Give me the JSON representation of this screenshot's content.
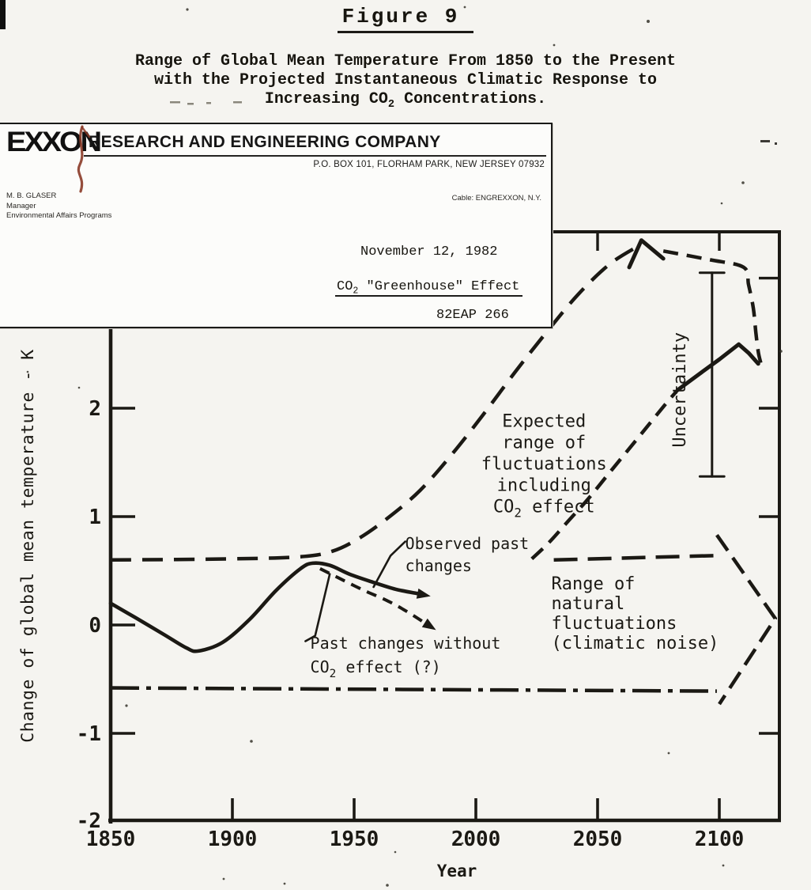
{
  "figure": {
    "label": "Figure 9",
    "caption_line1": "Range of Global Mean Temperature From 1850 to the Present",
    "caption_line2": "with the Projected Instantaneous Climatic Response to",
    "caption_line3_segs": [
      {
        "t": "Increasing CO"
      },
      {
        "t": "2",
        "sub": true
      },
      {
        "t": " Concentrations."
      }
    ]
  },
  "letterhead": {
    "logo": "EXXON",
    "company": "RESEARCH AND ENGINEERING COMPANY",
    "address": "P.O. BOX 101, FLORHAM PARK, NEW JERSEY 07932",
    "sender_name": "M. B. GLASER",
    "sender_title": "Manager",
    "sender_dept": "Environmental Affairs Programs",
    "cable": "Cable: ENGREXXON, N.Y.",
    "date": "November 12, 1982",
    "subject_segs": [
      {
        "t": "CO"
      },
      {
        "t": "2",
        "sub": true
      },
      {
        "t": " \"Greenhouse\" Effect"
      }
    ],
    "doc_number": "82EAP 266"
  },
  "colors": {
    "ink": "#1b1914",
    "paper": "#f5f4f0",
    "letterhead_paper": "#fcfcfa",
    "pen_mark": "#8a3a27"
  },
  "chart_data": {
    "type": "line",
    "title": "Range of Global Mean Temperature From 1850 to the Present with the Projected Instantaneous Climatic Response to Increasing CO2 Concentrations",
    "xlabel": "Year",
    "ylabel": "Change of global mean temperature - K",
    "xlim": [
      1850,
      2125
    ],
    "ylim": [
      -2,
      3.7
    ],
    "x_ticks": [
      1850,
      1900,
      1950,
      2000,
      2050,
      2100
    ],
    "y_ticks": [
      2,
      1,
      0,
      -1,
      -2
    ],
    "right_axis_ticks_K": [
      3.2,
      2,
      1,
      -1
    ],
    "top_axis_ticks_year": [
      2050,
      2100
    ],
    "grid": false,
    "legend": "annotated in-plot",
    "series": [
      {
        "id": "observed-past-changes",
        "name": "Observed past changes",
        "line": "solid",
        "style": {
          "width": 4.6,
          "smooth": true,
          "arrow": true
        },
        "points": [
          [
            1850,
            0.2
          ],
          [
            1860,
            0.07
          ],
          [
            1872,
            -0.09
          ],
          [
            1881,
            -0.21
          ],
          [
            1886,
            -0.24
          ],
          [
            1896,
            -0.16
          ],
          [
            1907,
            0.05
          ],
          [
            1918,
            0.32
          ],
          [
            1928,
            0.52
          ],
          [
            1933,
            0.57
          ],
          [
            1940,
            0.55
          ],
          [
            1948,
            0.47
          ],
          [
            1957,
            0.4
          ],
          [
            1967,
            0.33
          ],
          [
            1976,
            0.29
          ]
        ]
      },
      {
        "id": "past-changes-without-co2",
        "name": "Past changes without CO2 effect (?)",
        "line": "dashed",
        "style": {
          "width": 4,
          "dash": "13 9",
          "smooth": true,
          "arrow": true
        },
        "points": [
          [
            1936,
            0.52
          ],
          [
            1944,
            0.43
          ],
          [
            1954,
            0.32
          ],
          [
            1964,
            0.22
          ],
          [
            1972,
            0.12
          ],
          [
            1979,
            0.02
          ]
        ]
      },
      {
        "id": "expected-range-upper-bound",
        "name": "Expected range of fluctuations including CO2 effect - upper bound",
        "line": "dashed",
        "style": {
          "width": 4.5,
          "dash": "26 14",
          "smooth": true
        },
        "points": [
          [
            1850,
            0.6
          ],
          [
            1900,
            0.61
          ],
          [
            1928,
            0.63
          ],
          [
            1941,
            0.68
          ],
          [
            1952,
            0.8
          ],
          [
            1964,
            0.99
          ],
          [
            1977,
            1.24
          ],
          [
            1990,
            1.57
          ],
          [
            2003,
            1.94
          ],
          [
            2016,
            2.33
          ],
          [
            2029,
            2.7
          ],
          [
            2042,
            3.05
          ],
          [
            2055,
            3.33
          ],
          [
            2067,
            3.5
          ]
        ]
      },
      {
        "id": "expected-range-lower-bound",
        "name": "Expected range of fluctuations including CO2 effect - lower bound",
        "line": "dashed",
        "style": {
          "width": 4.5,
          "dash": "19 11",
          "smooth": true
        },
        "points": [
          [
            2023,
            0.61
          ],
          [
            2030,
            0.76
          ],
          [
            2038,
            0.96
          ],
          [
            2046,
            1.16
          ],
          [
            2054,
            1.38
          ],
          [
            2062,
            1.6
          ],
          [
            2070,
            1.82
          ],
          [
            2078,
            2.04
          ],
          [
            2083,
            2.17
          ]
        ]
      },
      {
        "id": "projected-rise-solid",
        "name": "Projected rise near 2100",
        "line": "solid",
        "style": {
          "width": 5,
          "smooth": false
        },
        "points": [
          [
            2083,
            2.17
          ],
          [
            2092,
            2.32
          ],
          [
            2100,
            2.45
          ],
          [
            2108,
            2.59
          ],
          [
            2112,
            2.51
          ],
          [
            2116,
            2.41
          ]
        ]
      },
      {
        "id": "natural-fluctuations-upper",
        "name": "Range of natural fluctuations - upper bound (+0.6 K)",
        "line": "dashed",
        "style": {
          "width": 4.5,
          "dash": "30 13"
        },
        "points": [
          [
            2032,
            0.6
          ],
          [
            2098,
            0.64
          ]
        ]
      },
      {
        "id": "natural-fluctuations-lower",
        "name": "Range of natural fluctuations - lower bound (-0.6 K)",
        "line": "dash-dot",
        "style": {
          "width": 4.5,
          "dash": "36 9 6 9"
        },
        "points": [
          [
            1850,
            -0.58
          ],
          [
            2099,
            -0.61
          ]
        ]
      }
    ],
    "shapes": [
      {
        "id": "big-arrow-head",
        "style": {
          "width": 5,
          "smooth": false
        },
        "points": [
          [
            2063,
            3.3
          ],
          [
            2068,
            3.55
          ],
          [
            2077,
            3.38
          ]
        ]
      },
      {
        "id": "big-arrow-right-edge",
        "style": {
          "width": 4.5,
          "dash": "19 11",
          "smooth": true
        },
        "points": [
          [
            2077,
            3.45
          ],
          [
            2096,
            3.37
          ],
          [
            2110,
            3.3
          ],
          [
            2112,
            3.14
          ],
          [
            2114,
            2.92
          ],
          [
            2115,
            2.7
          ],
          [
            2116,
            2.52
          ],
          [
            2117,
            2.42
          ]
        ]
      },
      {
        "id": "natural-arrowhead",
        "style": {
          "width": 4.5,
          "dash": "24 11"
        },
        "points": [
          [
            2099,
            0.83
          ],
          [
            2123,
            0.06
          ],
          [
            2100,
            -0.73
          ]
        ]
      },
      {
        "id": "uncertainty-bar",
        "style": {
          "width": 3
        },
        "points": [
          [
            2097,
            3.25
          ],
          [
            2097,
            1.37
          ]
        ]
      },
      {
        "id": "uncertainty-cap-top",
        "style": {
          "width": 3
        },
        "points": [
          [
            2092,
            3.25
          ],
          [
            2102,
            3.25
          ]
        ]
      },
      {
        "id": "uncertainty-cap-bottom",
        "style": {
          "width": 3
        },
        "points": [
          [
            2092,
            1.37
          ],
          [
            2102,
            1.37
          ]
        ]
      },
      {
        "id": "observed-leader-line",
        "style": {
          "width": 2.6
        },
        "points": [
          [
            1971,
            0.77
          ],
          [
            1965,
            0.64
          ],
          [
            1958,
            0.35
          ]
        ]
      },
      {
        "id": "past-leader-line",
        "style": {
          "width": 2.6
        },
        "points": [
          [
            1940,
            0.47
          ],
          [
            1934,
            -0.1
          ],
          [
            1930,
            -0.15
          ]
        ]
      }
    ],
    "annotations": [
      {
        "id": "expected-range-label",
        "x": 2028,
        "y": 1.83,
        "align": "middle",
        "size": 22,
        "lh": 27,
        "lines": [
          [
            {
              "t": "Expected"
            }
          ],
          [
            {
              "t": "range of"
            }
          ],
          [
            {
              "t": "fluctuations"
            }
          ],
          [
            {
              "t": "including"
            }
          ],
          [
            {
              "t": "CO"
            },
            {
              "t": "2",
              "sub": true
            },
            {
              "t": " effect"
            }
          ]
        ]
      },
      {
        "id": "uncertainty-label",
        "x": 2086,
        "y": 2.17,
        "align": "middle",
        "size": 22,
        "rotate": -90,
        "lines": [
          [
            {
              "t": "Uncertainty"
            }
          ]
        ]
      },
      {
        "id": "observed-past-changes-label",
        "x": 1971,
        "y": 0.7,
        "align": "start",
        "size": 20,
        "lh": 28,
        "lines": [
          [
            {
              "t": "Observed past"
            }
          ],
          [
            {
              "t": "changes"
            }
          ]
        ]
      },
      {
        "id": "past-changes-label",
        "x": 1932,
        "y": -0.22,
        "align": "start",
        "size": 20,
        "lh": 30,
        "lines": [
          [
            {
              "t": "Past changes without"
            }
          ],
          [
            {
              "t": "CO"
            },
            {
              "t": "2",
              "sub": true
            },
            {
              "t": " effect (?)"
            }
          ]
        ]
      },
      {
        "id": "natural-fluctuations-label",
        "x": 2031,
        "y": 0.33,
        "align": "start",
        "size": 22,
        "lh": 25,
        "lines": [
          [
            {
              "t": "Range of"
            }
          ],
          [
            {
              "t": "natural"
            }
          ],
          [
            {
              "t": "fluctuations"
            }
          ],
          [
            {
              "t": "(climatic noise)"
            }
          ]
        ]
      }
    ]
  }
}
